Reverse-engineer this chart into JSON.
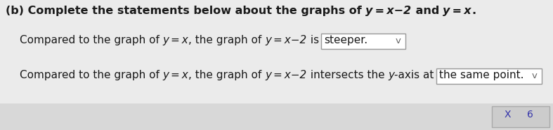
{
  "bg_color": "#e0e0e0",
  "white_panel_color": "#f0f0f0",
  "title_bold_part": "(b) Complete the statements below about the graphs of ",
  "title_italic1": "y = x−2",
  "title_and": " and ",
  "title_italic2": "y = x",
  "title_period": ".",
  "line1_text": "Compared to the graph of ",
  "line1_it1": "y = x",
  "line1_mid": ", the graph of ",
  "line1_it2": "y = x−2",
  "line1_post": " is ",
  "line1_answer": "steeper.",
  "line2_text": "Compared to the graph of ",
  "line2_it1": "y = x",
  "line2_mid": ", the graph of ",
  "line2_it2": "y = x−2",
  "line2_post": " intersects the ",
  "line2_yit": "y",
  "line2_post2": "-axis at ",
  "line2_answer": "the same point.",
  "box_face": "#ffffff",
  "box_edge": "#999999",
  "dropdown_arrow": "v",
  "text_color": "#1a1a1a",
  "bottom_box_face": "#cccccc",
  "bottom_box_edge": "#aaaaaa",
  "font_size_title": 11.5,
  "font_size_body": 11.0,
  "font_size_small": 9.5
}
